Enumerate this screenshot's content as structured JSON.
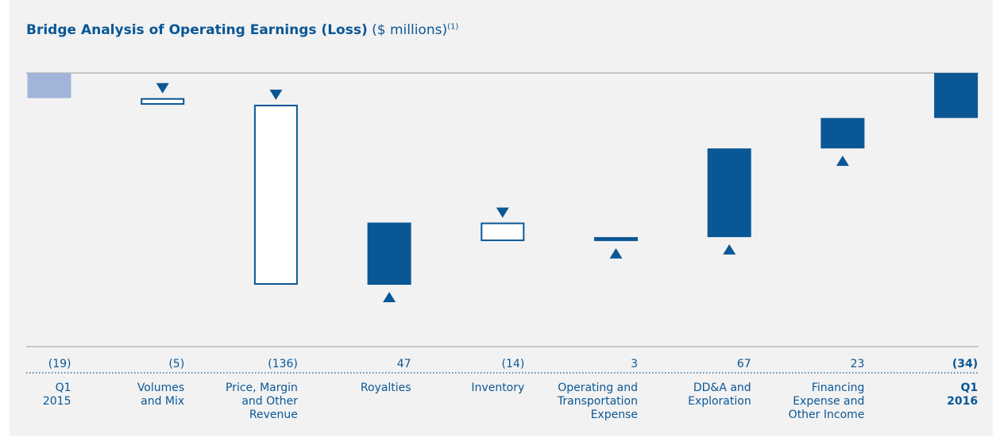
{
  "chart_data": {
    "type": "waterfall",
    "title": "Bridge Analysis of Operating Earnings (Loss)",
    "subtitle": "($ millions)",
    "note_marker": "(1)",
    "categories": [
      "Q1\n2015",
      "Volumes\nand Mix",
      "Price, Margin\nand Other\nRevenue",
      "Royalties",
      "Inventory",
      "Operating and\nTransportation\nExpense",
      "DD&A and\nExploration",
      "Financing\nExpense and\nOther Income",
      "Q1\n2016"
    ],
    "values": [
      -19,
      -5,
      -136,
      47,
      -14,
      3,
      67,
      23,
      -34
    ],
    "value_labels": [
      "(19)",
      "(5)",
      "(136)",
      "47",
      "(14)",
      "3",
      "67",
      "23",
      "(34)"
    ],
    "color": "#0a5796",
    "start_color": "#a2b4da"
  }
}
